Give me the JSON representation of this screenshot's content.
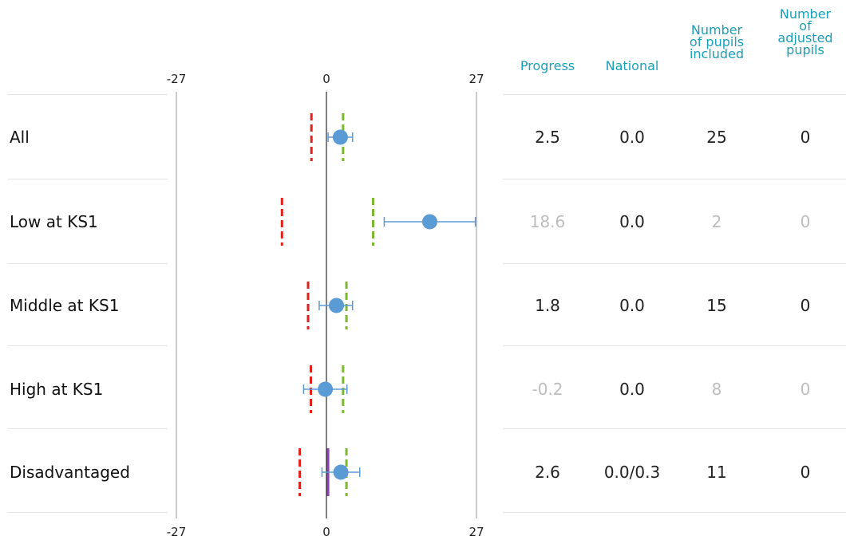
{
  "chart_data": {
    "type": "scatter",
    "title": "",
    "xlim": [
      -27,
      27
    ],
    "axis_ticks": [
      "-27",
      "0",
      "27"
    ],
    "columns": [
      "Progress",
      "National",
      "Number of pupils included",
      "Number of adjusted pupils"
    ],
    "rows": [
      {
        "label": "All",
        "progress": 2.5,
        "progress_text": "2.5",
        "national": "0.0",
        "pupils": "25",
        "adjusted": "0",
        "muted": false,
        "ci_low": 0.3,
        "ci_high": 4.7,
        "red_line": -2.7,
        "green_line": 3.0,
        "purple_line": null
      },
      {
        "label": "Low at KS1",
        "progress": 18.6,
        "progress_text": "18.6",
        "national": "0.0",
        "pupils": "2",
        "adjusted": "0",
        "muted": true,
        "ci_low": 10.4,
        "ci_high": 26.8,
        "red_line": -8.0,
        "green_line": 8.4,
        "purple_line": null
      },
      {
        "label": "Middle at KS1",
        "progress": 1.8,
        "progress_text": "1.8",
        "national": "0.0",
        "pupils": "15",
        "adjusted": "0",
        "muted": false,
        "ci_low": -1.3,
        "ci_high": 4.7,
        "red_line": -3.3,
        "green_line": 3.6,
        "purple_line": null
      },
      {
        "label": "High at KS1",
        "progress": -0.2,
        "progress_text": "-0.2",
        "national": "0.0",
        "pupils": "8",
        "adjusted": "0",
        "muted": true,
        "ci_low": -4.1,
        "ci_high": 3.7,
        "red_line": -2.8,
        "green_line": 3.0,
        "purple_line": null
      },
      {
        "label": "Disadvantaged",
        "progress": 2.6,
        "progress_text": "2.6",
        "national": "0.0/0.3",
        "pupils": "11",
        "adjusted": "0",
        "muted": false,
        "ci_low": -0.8,
        "ci_high": 6.0,
        "red_line": -4.8,
        "green_line": 3.6,
        "purple_line": 0.3
      }
    ]
  },
  "headers": {
    "progress": "Progress",
    "national": "National",
    "pupils_included": [
      "Number",
      "of pupils",
      "included"
    ],
    "adjusted_pupils": [
      "Number",
      "of",
      "adjusted",
      "pupils"
    ]
  },
  "colors": {
    "header": "#1a9fb8",
    "point": "#5b9bd5",
    "ci": "#5b9bd5",
    "red_line": "#e0201b",
    "green_line": "#7cb82f",
    "purple_line": "#8e44ad",
    "axis": "#999999",
    "zero": "#000000"
  }
}
